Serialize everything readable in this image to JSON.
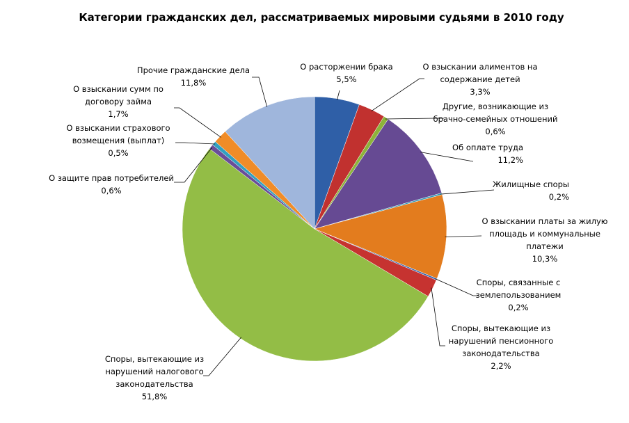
{
  "chart_data": {
    "type": "pie",
    "title": "Категории гражданских дел, рассматриваемых мировыми судьями в 2010 году",
    "slices": [
      {
        "label": [
          "О расторжении брака"
        ],
        "value": 5.5,
        "value_label": "5,5%",
        "color": "#2f5fa7"
      },
      {
        "label": [
          "О взыскании алиментов на",
          "содержание детей"
        ],
        "value": 3.3,
        "value_label": "3,3%",
        "color": "#c1312f"
      },
      {
        "label": [
          "Другие, возникающие из",
          "брачно-семейных отношений"
        ],
        "value": 0.6,
        "value_label": "0,6%",
        "color": "#8db33a"
      },
      {
        "label": [
          "Об оплате труда"
        ],
        "value": 11.2,
        "value_label": "11,2%",
        "color": "#664a93"
      },
      {
        "label": [
          "Жилищные споры"
        ],
        "value": 0.2,
        "value_label": "0,2%",
        "color": "#2d96b5"
      },
      {
        "label": [
          "О взыскании платы за жилую",
          "площадь и коммунальные",
          "платежи"
        ],
        "value": 10.3,
        "value_label": "10,3%",
        "color": "#e37c1e"
      },
      {
        "label": [
          "Споры, связанные с",
          "землепользованием"
        ],
        "value": 0.2,
        "value_label": "0,2%",
        "color": "#3a66ad"
      },
      {
        "label": [
          "Споры, вытекающие из",
          "нарушений пенсионного",
          "законодательства"
        ],
        "value": 2.2,
        "value_label": "2,2%",
        "color": "#c63330"
      },
      {
        "label": [
          "Споры, вытекающие из",
          "нарушений налогового",
          "законодательства"
        ],
        "value": 51.8,
        "value_label": "51,8%",
        "color": "#93bd46"
      },
      {
        "label": [
          "О защите прав потребителей"
        ],
        "value": 0.6,
        "value_label": "0,6%",
        "color": "#6a4d99"
      },
      {
        "label": [
          "О взыскании страхового",
          "возмещения (выплат)"
        ],
        "value": 0.5,
        "value_label": "0,5%",
        "color": "#32a0c0"
      },
      {
        "label": [
          "О взыскании сумм по",
          "договору займа"
        ],
        "value": 1.7,
        "value_label": "1,7%",
        "color": "#f08c28"
      },
      {
        "label": [
          "Прочие гражданские дела"
        ],
        "value": 11.8,
        "value_label": "11,8%",
        "color": "#9fb6dc"
      }
    ]
  }
}
